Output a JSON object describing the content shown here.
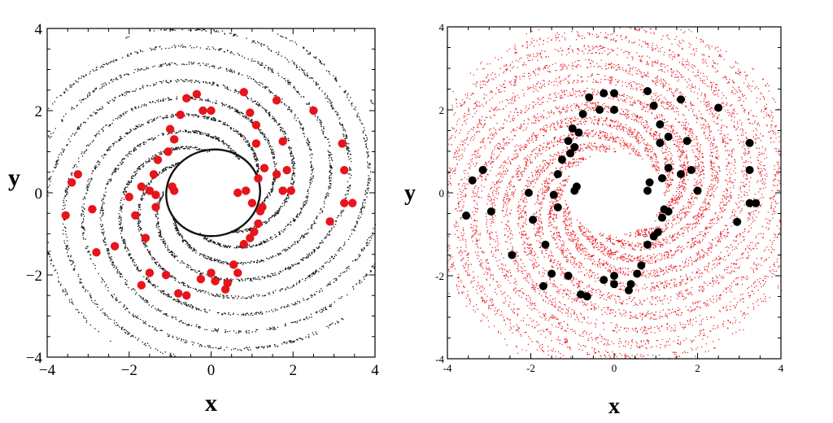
{
  "chart_data": [
    {
      "type": "scatter",
      "title": "",
      "xlabel": "x",
      "ylabel": "y",
      "xlim": [
        -4,
        4
      ],
      "ylim": [
        -4,
        4
      ],
      "xticks": [
        "−4",
        "−2",
        "0",
        "2",
        "4"
      ],
      "yticks": [
        "−4",
        "−2",
        "0",
        "2",
        "4"
      ],
      "grid": false,
      "colors": {
        "background_points": "#111111",
        "markers": "#e8141b",
        "frame": "#000000"
      },
      "series": [
        {
          "kind": "chaotic-attractor-background",
          "color": "#111111",
          "points": [
            [
              -3.4,
              0.25
            ],
            [
              -3.25,
              0.45
            ],
            [
              -2.9,
              -0.4
            ],
            [
              -3.55,
              -0.55
            ],
            [
              -2.8,
              -1.45
            ],
            [
              -2.35,
              -1.3
            ],
            [
              -2.0,
              -0.1
            ],
            [
              -1.85,
              -0.55
            ],
            [
              -1.7,
              0.15
            ],
            [
              -1.5,
              0.05
            ],
            [
              -1.6,
              -1.1
            ],
            [
              -1.5,
              -1.95
            ],
            [
              -1.7,
              -2.25
            ],
            [
              -1.1,
              -2.0
            ],
            [
              -0.8,
              -2.45
            ],
            [
              -0.6,
              -2.5
            ],
            [
              -0.25,
              -2.1
            ],
            [
              0.0,
              -1.95
            ],
            [
              0.1,
              -2.15
            ],
            [
              0.35,
              -2.35
            ],
            [
              0.4,
              -2.2
            ],
            [
              0.55,
              -1.75
            ],
            [
              0.65,
              -1.95
            ],
            [
              0.8,
              -1.25
            ],
            [
              0.95,
              -1.1
            ],
            [
              1.05,
              -0.95
            ],
            [
              1.15,
              -0.75
            ],
            [
              1.2,
              -0.45
            ],
            [
              1.0,
              -0.25
            ],
            [
              1.25,
              -0.35
            ],
            [
              0.85,
              0.05
            ],
            [
              0.65,
              0.0
            ],
            [
              1.15,
              0.35
            ],
            [
              1.3,
              0.6
            ],
            [
              1.6,
              0.45
            ],
            [
              1.75,
              0.05
            ],
            [
              1.95,
              0.05
            ],
            [
              1.85,
              0.55
            ],
            [
              1.75,
              1.25
            ],
            [
              1.1,
              1.65
            ],
            [
              1.1,
              1.2
            ],
            [
              0.95,
              1.95
            ],
            [
              0.8,
              2.45
            ],
            [
              0.0,
              2.0
            ],
            [
              -0.2,
              2.0
            ],
            [
              -0.35,
              2.4
            ],
            [
              -0.6,
              2.3
            ],
            [
              -0.75,
              1.9
            ],
            [
              -1.0,
              1.55
            ],
            [
              -0.9,
              1.3
            ],
            [
              -1.05,
              1.0
            ],
            [
              -1.3,
              0.8
            ],
            [
              -1.4,
              0.45
            ],
            [
              -1.35,
              -0.05
            ],
            [
              -1.35,
              -0.35
            ],
            [
              -0.9,
              0.05
            ],
            [
              -0.95,
              0.15
            ],
            [
              1.6,
              2.25
            ],
            [
              2.5,
              2.0
            ],
            [
              2.9,
              -0.7
            ],
            [
              3.25,
              0.55
            ],
            [
              3.2,
              1.2
            ],
            [
              3.25,
              -0.25
            ],
            [
              3.45,
              -0.25
            ]
          ]
        },
        {
          "kind": "markers",
          "color": "#e8141b",
          "points": [
            [
              -3.4,
              0.25
            ],
            [
              -3.25,
              0.45
            ],
            [
              -2.9,
              -0.4
            ],
            [
              -3.55,
              -0.55
            ],
            [
              -2.8,
              -1.45
            ],
            [
              -2.35,
              -1.3
            ],
            [
              -2.0,
              -0.1
            ],
            [
              -1.85,
              -0.55
            ],
            [
              -1.7,
              0.15
            ],
            [
              -1.5,
              0.05
            ],
            [
              -1.6,
              -1.1
            ],
            [
              -1.5,
              -1.95
            ],
            [
              -1.7,
              -2.25
            ],
            [
              -1.1,
              -2.0
            ],
            [
              -0.8,
              -2.45
            ],
            [
              -0.6,
              -2.5
            ],
            [
              -0.25,
              -2.1
            ],
            [
              0.0,
              -1.95
            ],
            [
              0.1,
              -2.15
            ],
            [
              0.35,
              -2.35
            ],
            [
              0.4,
              -2.2
            ],
            [
              0.55,
              -1.75
            ],
            [
              0.65,
              -1.95
            ],
            [
              0.8,
              -1.25
            ],
            [
              0.95,
              -1.1
            ],
            [
              1.05,
              -0.95
            ],
            [
              1.15,
              -0.75
            ],
            [
              1.2,
              -0.45
            ],
            [
              1.0,
              -0.25
            ],
            [
              1.25,
              -0.35
            ],
            [
              0.85,
              0.05
            ],
            [
              0.65,
              0.0
            ],
            [
              1.15,
              0.35
            ],
            [
              1.3,
              0.6
            ],
            [
              1.6,
              0.45
            ],
            [
              1.75,
              0.05
            ],
            [
              1.95,
              0.05
            ],
            [
              1.85,
              0.55
            ],
            [
              1.75,
              1.25
            ],
            [
              1.1,
              1.65
            ],
            [
              1.1,
              1.2
            ],
            [
              0.95,
              1.95
            ],
            [
              0.8,
              2.45
            ],
            [
              0.0,
              2.0
            ],
            [
              -0.2,
              2.0
            ],
            [
              -0.35,
              2.4
            ],
            [
              -0.6,
              2.3
            ],
            [
              -0.75,
              1.9
            ],
            [
              -1.0,
              1.55
            ],
            [
              -0.9,
              1.3
            ],
            [
              -1.05,
              1.0
            ],
            [
              -1.3,
              0.8
            ],
            [
              -1.4,
              0.45
            ],
            [
              -1.35,
              -0.05
            ],
            [
              -1.35,
              -0.35
            ],
            [
              -0.9,
              0.05
            ],
            [
              -0.95,
              0.15
            ],
            [
              1.6,
              2.25
            ],
            [
              2.5,
              2.0
            ],
            [
              2.9,
              -0.7
            ],
            [
              3.25,
              0.55
            ],
            [
              3.2,
              1.2
            ],
            [
              3.25,
              -0.25
            ],
            [
              3.45,
              -0.25
            ]
          ]
        }
      ]
    },
    {
      "type": "scatter",
      "title": "",
      "xlabel": "x",
      "ylabel": "y",
      "xlim": [
        -4,
        4
      ],
      "ylim": [
        -4,
        4
      ],
      "xticks": [
        "-4",
        "-2",
        "0",
        "2",
        "4"
      ],
      "yticks": [
        "-4",
        "-2",
        "0",
        "2",
        "4"
      ],
      "grid": false,
      "colors": {
        "background_points": "#e8141b",
        "markers": "#000000",
        "frame": "#000000"
      },
      "series": [
        {
          "kind": "chaotic-attractor-background",
          "color": "#e8141b",
          "points": [
            [
              -3.55,
              -0.55
            ],
            [
              -3.4,
              0.3
            ],
            [
              -3.15,
              0.55
            ],
            [
              -2.95,
              -0.45
            ],
            [
              -2.45,
              -1.5
            ],
            [
              -2.05,
              0.0
            ],
            [
              -1.95,
              -0.65
            ],
            [
              -1.65,
              -1.25
            ],
            [
              -1.45,
              -0.05
            ],
            [
              -1.35,
              -0.35
            ],
            [
              -1.35,
              0.45
            ],
            [
              -1.25,
              0.8
            ],
            [
              -1.05,
              0.95
            ],
            [
              -0.95,
              1.1
            ],
            [
              -1.1,
              1.25
            ],
            [
              -1.0,
              1.55
            ],
            [
              -0.85,
              1.45
            ],
            [
              -0.75,
              1.9
            ],
            [
              -0.6,
              2.3
            ],
            [
              -0.35,
              2.0
            ],
            [
              -0.25,
              2.4
            ],
            [
              0.0,
              2.0
            ],
            [
              0.0,
              2.4
            ],
            [
              0.8,
              2.45
            ],
            [
              0.95,
              2.1
            ],
            [
              1.1,
              1.65
            ],
            [
              1.1,
              1.2
            ],
            [
              1.3,
              1.35
            ],
            [
              1.6,
              2.25
            ],
            [
              1.75,
              1.25
            ],
            [
              1.85,
              0.55
            ],
            [
              2.0,
              0.05
            ],
            [
              1.6,
              0.45
            ],
            [
              1.3,
              0.6
            ],
            [
              0.8,
              0.05
            ],
            [
              0.85,
              0.25
            ],
            [
              1.15,
              0.35
            ],
            [
              1.2,
              -0.4
            ],
            [
              1.3,
              -0.45
            ],
            [
              1.15,
              -0.6
            ],
            [
              1.05,
              -0.95
            ],
            [
              0.95,
              -1.05
            ],
            [
              0.8,
              -1.25
            ],
            [
              0.65,
              -1.75
            ],
            [
              0.55,
              -1.95
            ],
            [
              0.35,
              -2.35
            ],
            [
              0.4,
              -2.2
            ],
            [
              0.0,
              -2.0
            ],
            [
              0.0,
              -2.2
            ],
            [
              -0.25,
              -2.1
            ],
            [
              -0.65,
              -2.5
            ],
            [
              -0.8,
              -2.45
            ],
            [
              -1.1,
              -2.0
            ],
            [
              -1.5,
              -1.95
            ],
            [
              -1.7,
              -2.25
            ],
            [
              -0.9,
              0.15
            ],
            [
              -0.95,
              0.05
            ],
            [
              2.5,
              2.05
            ],
            [
              2.95,
              -0.7
            ],
            [
              3.25,
              0.55
            ],
            [
              3.25,
              1.2
            ],
            [
              3.25,
              -0.25
            ],
            [
              3.4,
              -0.25
            ]
          ]
        },
        {
          "kind": "markers",
          "color": "#000000",
          "points": [
            [
              -3.55,
              -0.55
            ],
            [
              -3.4,
              0.3
            ],
            [
              -3.15,
              0.55
            ],
            [
              -2.95,
              -0.45
            ],
            [
              -2.45,
              -1.5
            ],
            [
              -2.05,
              0.0
            ],
            [
              -1.95,
              -0.65
            ],
            [
              -1.65,
              -1.25
            ],
            [
              -1.45,
              -0.05
            ],
            [
              -1.35,
              -0.35
            ],
            [
              -1.35,
              0.45
            ],
            [
              -1.25,
              0.8
            ],
            [
              -1.05,
              0.95
            ],
            [
              -0.95,
              1.1
            ],
            [
              -1.1,
              1.25
            ],
            [
              -1.0,
              1.55
            ],
            [
              -0.85,
              1.45
            ],
            [
              -0.75,
              1.9
            ],
            [
              -0.6,
              2.3
            ],
            [
              -0.35,
              2.0
            ],
            [
              -0.25,
              2.4
            ],
            [
              0.0,
              2.0
            ],
            [
              0.0,
              2.4
            ],
            [
              0.8,
              2.45
            ],
            [
              0.95,
              2.1
            ],
            [
              1.1,
              1.65
            ],
            [
              1.1,
              1.2
            ],
            [
              1.3,
              1.35
            ],
            [
              1.6,
              2.25
            ],
            [
              1.75,
              1.25
            ],
            [
              1.85,
              0.55
            ],
            [
              2.0,
              0.05
            ],
            [
              1.6,
              0.45
            ],
            [
              1.3,
              0.6
            ],
            [
              0.8,
              0.05
            ],
            [
              0.85,
              0.25
            ],
            [
              1.15,
              0.35
            ],
            [
              1.2,
              -0.4
            ],
            [
              1.3,
              -0.45
            ],
            [
              1.15,
              -0.6
            ],
            [
              1.05,
              -0.95
            ],
            [
              0.95,
              -1.05
            ],
            [
              0.8,
              -1.25
            ],
            [
              0.65,
              -1.75
            ],
            [
              0.55,
              -1.95
            ],
            [
              0.35,
              -2.35
            ],
            [
              0.4,
              -2.2
            ],
            [
              0.0,
              -2.0
            ],
            [
              0.0,
              -2.2
            ],
            [
              -0.25,
              -2.1
            ],
            [
              -0.65,
              -2.5
            ],
            [
              -0.8,
              -2.45
            ],
            [
              -1.1,
              -2.0
            ],
            [
              -1.5,
              -1.95
            ],
            [
              -1.7,
              -2.25
            ],
            [
              -0.9,
              0.15
            ],
            [
              -0.95,
              0.05
            ],
            [
              2.5,
              2.05
            ],
            [
              2.95,
              -0.7
            ],
            [
              3.25,
              0.55
            ],
            [
              3.25,
              1.2
            ],
            [
              3.25,
              -0.25
            ],
            [
              3.4,
              -0.25
            ]
          ]
        }
      ]
    }
  ]
}
